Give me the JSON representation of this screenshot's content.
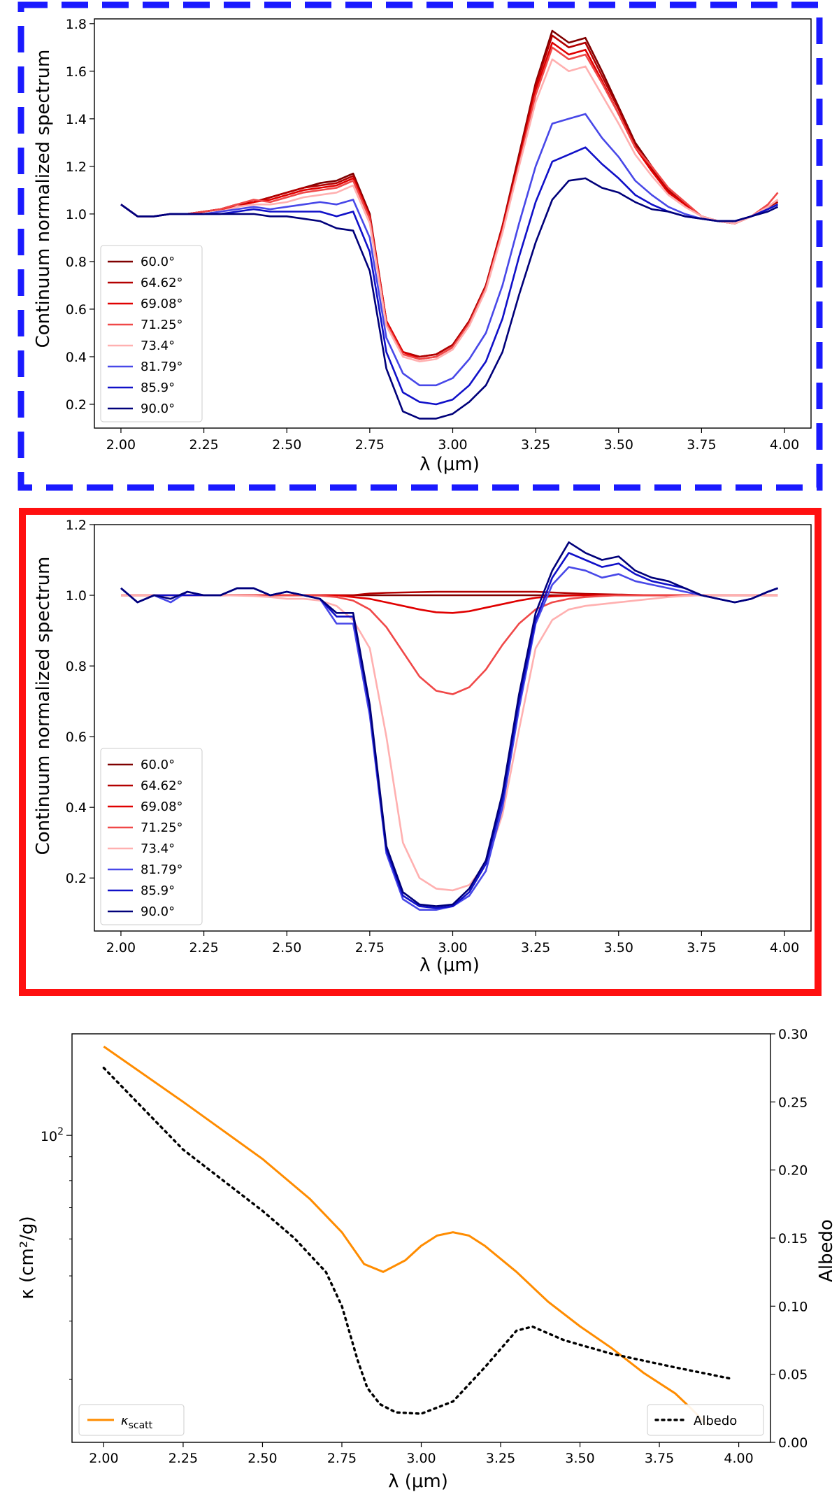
{
  "chart_data": [
    {
      "type": "line",
      "xlabel": "λ (μm)",
      "ylabel": "Continuum normalized spectrum",
      "xlim": [
        1.92,
        4.08
      ],
      "ylim": [
        0.1,
        1.82
      ],
      "x_ticks": [
        "2.00",
        "2.25",
        "2.50",
        "2.75",
        "3.00",
        "3.25",
        "3.50",
        "3.75",
        "4.00"
      ],
      "y_ticks": [
        "0.2",
        "0.4",
        "0.6",
        "0.8",
        "1.0",
        "1.2",
        "1.4",
        "1.6",
        "1.8"
      ],
      "legend_position": "lower-left",
      "border": "blue-dashed",
      "x": [
        2.0,
        2.05,
        2.1,
        2.15,
        2.2,
        2.25,
        2.3,
        2.35,
        2.4,
        2.45,
        2.5,
        2.55,
        2.6,
        2.65,
        2.7,
        2.75,
        2.8,
        2.85,
        2.9,
        2.95,
        3.0,
        3.05,
        3.1,
        3.15,
        3.2,
        3.25,
        3.3,
        3.35,
        3.4,
        3.45,
        3.5,
        3.55,
        3.6,
        3.65,
        3.7,
        3.75,
        3.8,
        3.85,
        3.9,
        3.95,
        3.98
      ],
      "series": [
        {
          "name": "60.0°",
          "color": "#7f0000",
          "values": [
            1.04,
            0.99,
            0.99,
            1.0,
            1.0,
            1.01,
            1.02,
            1.04,
            1.05,
            1.07,
            1.09,
            1.11,
            1.13,
            1.14,
            1.17,
            1.0,
            0.55,
            0.42,
            0.4,
            0.41,
            0.45,
            0.55,
            0.7,
            0.95,
            1.25,
            1.55,
            1.77,
            1.72,
            1.74,
            1.6,
            1.45,
            1.3,
            1.2,
            1.1,
            1.04,
            0.99,
            0.97,
            0.96,
            0.99,
            1.03,
            1.05
          ]
        },
        {
          "name": "64.62°",
          "color": "#b30000",
          "values": [
            1.04,
            0.99,
            0.99,
            1.0,
            1.0,
            1.01,
            1.02,
            1.04,
            1.05,
            1.07,
            1.09,
            1.11,
            1.12,
            1.13,
            1.16,
            0.99,
            0.55,
            0.42,
            0.4,
            0.41,
            0.45,
            0.55,
            0.7,
            0.95,
            1.24,
            1.54,
            1.75,
            1.7,
            1.72,
            1.58,
            1.44,
            1.29,
            1.19,
            1.1,
            1.04,
            0.99,
            0.97,
            0.96,
            0.99,
            1.03,
            1.05
          ]
        },
        {
          "name": "69.08°",
          "color": "#e00000",
          "values": [
            1.04,
            0.99,
            0.99,
            1.0,
            1.0,
            1.01,
            1.02,
            1.03,
            1.05,
            1.06,
            1.08,
            1.1,
            1.11,
            1.12,
            1.15,
            0.99,
            0.55,
            0.42,
            0.39,
            0.4,
            0.44,
            0.54,
            0.69,
            0.94,
            1.22,
            1.52,
            1.72,
            1.67,
            1.69,
            1.56,
            1.42,
            1.28,
            1.18,
            1.09,
            1.04,
            0.99,
            0.97,
            0.96,
            0.99,
            1.03,
            1.06
          ]
        },
        {
          "name": "71.25°",
          "color": "#f04848",
          "values": [
            1.04,
            0.99,
            0.99,
            1.0,
            1.0,
            1.01,
            1.02,
            1.04,
            1.06,
            1.05,
            1.07,
            1.09,
            1.1,
            1.11,
            1.14,
            0.98,
            0.54,
            0.41,
            0.39,
            0.4,
            0.44,
            0.54,
            0.69,
            0.93,
            1.21,
            1.5,
            1.7,
            1.65,
            1.67,
            1.55,
            1.42,
            1.28,
            1.2,
            1.11,
            1.05,
            0.99,
            0.97,
            0.96,
            0.99,
            1.04,
            1.09
          ]
        },
        {
          "name": "73.4°",
          "color": "#ffb0b0",
          "values": [
            1.04,
            0.99,
            0.99,
            1.0,
            1.0,
            1.0,
            1.01,
            1.03,
            1.04,
            1.04,
            1.05,
            1.07,
            1.08,
            1.09,
            1.12,
            0.96,
            0.53,
            0.4,
            0.38,
            0.39,
            0.43,
            0.53,
            0.68,
            0.92,
            1.2,
            1.47,
            1.65,
            1.6,
            1.62,
            1.5,
            1.38,
            1.25,
            1.16,
            1.08,
            1.03,
            0.99,
            0.97,
            0.96,
            0.99,
            1.03,
            1.06
          ]
        },
        {
          "name": "81.79°",
          "color": "#4848e8",
          "values": [
            1.04,
            0.99,
            0.99,
            1.0,
            1.0,
            1.0,
            1.01,
            1.02,
            1.03,
            1.02,
            1.03,
            1.04,
            1.05,
            1.04,
            1.06,
            0.9,
            0.48,
            0.33,
            0.28,
            0.28,
            0.31,
            0.39,
            0.5,
            0.7,
            0.96,
            1.2,
            1.38,
            1.4,
            1.42,
            1.32,
            1.24,
            1.14,
            1.08,
            1.03,
            1.0,
            0.98,
            0.97,
            0.97,
            0.99,
            1.02,
            1.04
          ]
        },
        {
          "name": "85.9°",
          "color": "#1010c8",
          "values": [
            1.04,
            0.99,
            0.99,
            1.0,
            1.0,
            1.0,
            1.0,
            1.01,
            1.02,
            1.01,
            1.01,
            1.01,
            1.01,
            0.99,
            1.01,
            0.84,
            0.42,
            0.25,
            0.21,
            0.2,
            0.22,
            0.28,
            0.38,
            0.56,
            0.82,
            1.05,
            1.22,
            1.25,
            1.28,
            1.21,
            1.15,
            1.08,
            1.04,
            1.01,
            0.99,
            0.98,
            0.97,
            0.97,
            0.99,
            1.02,
            1.04
          ]
        },
        {
          "name": "90.0°",
          "color": "#00007a",
          "values": [
            1.04,
            0.99,
            0.99,
            1.0,
            1.0,
            1.0,
            1.0,
            1.0,
            1.0,
            0.99,
            0.99,
            0.98,
            0.97,
            0.94,
            0.93,
            0.76,
            0.35,
            0.17,
            0.14,
            0.14,
            0.16,
            0.21,
            0.28,
            0.42,
            0.66,
            0.88,
            1.06,
            1.14,
            1.15,
            1.11,
            1.09,
            1.05,
            1.02,
            1.01,
            0.99,
            0.98,
            0.97,
            0.97,
            0.99,
            1.01,
            1.03
          ]
        }
      ]
    },
    {
      "type": "line",
      "xlabel": "λ (μm)",
      "ylabel": "Continuum normalized spectrum",
      "xlim": [
        1.92,
        4.08
      ],
      "ylim": [
        0.05,
        1.2
      ],
      "x_ticks": [
        "2.00",
        "2.25",
        "2.50",
        "2.75",
        "3.00",
        "3.25",
        "3.50",
        "3.75",
        "4.00"
      ],
      "y_ticks": [
        "0.2",
        "0.4",
        "0.6",
        "0.8",
        "1.0",
        "1.2"
      ],
      "legend_position": "lower-left",
      "border": "red-solid",
      "x": [
        2.0,
        2.05,
        2.1,
        2.15,
        2.2,
        2.25,
        2.3,
        2.35,
        2.4,
        2.45,
        2.5,
        2.55,
        2.6,
        2.65,
        2.7,
        2.75,
        2.8,
        2.85,
        2.9,
        2.95,
        3.0,
        3.05,
        3.1,
        3.15,
        3.2,
        3.25,
        3.3,
        3.35,
        3.4,
        3.45,
        3.5,
        3.55,
        3.6,
        3.65,
        3.7,
        3.75,
        3.8,
        3.85,
        3.9,
        3.95,
        3.98
      ],
      "series": [
        {
          "name": "60.0°",
          "color": "#7f0000",
          "values": [
            1.0,
            1.0,
            1.0,
            1.0,
            1.0,
            1.0,
            1.0,
            1.0,
            1.0,
            1.0,
            1.0,
            1.0,
            1.0,
            1.0,
            1.0,
            1.0,
            1.0,
            1.0,
            1.0,
            1.0,
            1.0,
            1.0,
            1.0,
            1.0,
            1.0,
            1.0,
            1.0,
            1.0,
            1.0,
            1.0,
            1.0,
            1.0,
            1.0,
            1.0,
            1.0,
            1.0,
            1.0,
            1.0,
            1.0,
            1.0,
            1.0
          ]
        },
        {
          "name": "64.62°",
          "color": "#b30000",
          "values": [
            1.0,
            1.0,
            1.0,
            1.0,
            1.0,
            1.0,
            1.0,
            1.0,
            1.0,
            1.0,
            1.0,
            1.0,
            1.0,
            1.0,
            1.0,
            1.005,
            1.007,
            1.008,
            1.009,
            1.01,
            1.01,
            1.01,
            1.01,
            1.01,
            1.01,
            1.01,
            1.008,
            1.006,
            1.004,
            1.003,
            1.002,
            1.001,
            1.0,
            1.0,
            1.0,
            1.0,
            1.0,
            1.0,
            1.0,
            1.0,
            1.0
          ]
        },
        {
          "name": "69.08°",
          "color": "#e00000",
          "values": [
            1.0,
            1.0,
            1.0,
            1.0,
            1.0,
            1.0,
            1.0,
            1.0,
            1.0,
            1.0,
            1.0,
            1.0,
            1.0,
            1.0,
            0.995,
            0.99,
            0.98,
            0.97,
            0.96,
            0.952,
            0.95,
            0.955,
            0.965,
            0.975,
            0.985,
            0.993,
            0.997,
            0.999,
            1.0,
            1.0,
            1.0,
            1.0,
            1.0,
            1.0,
            1.0,
            1.0,
            1.0,
            1.0,
            1.0,
            1.0,
            1.0
          ]
        },
        {
          "name": "71.25°",
          "color": "#f04848",
          "values": [
            1.0,
            1.0,
            1.0,
            1.0,
            1.0,
            1.0,
            1.0,
            1.0,
            1.0,
            1.0,
            1.0,
            1.0,
            0.999,
            0.995,
            0.985,
            0.96,
            0.91,
            0.84,
            0.77,
            0.73,
            0.72,
            0.74,
            0.79,
            0.86,
            0.92,
            0.96,
            0.98,
            0.99,
            0.995,
            0.998,
            1.0,
            1.0,
            1.0,
            1.0,
            1.0,
            1.0,
            1.0,
            1.0,
            1.0,
            1.0,
            1.0
          ]
        },
        {
          "name": "73.4°",
          "color": "#ffb0b0",
          "values": [
            1.0,
            1.0,
            1.0,
            1.0,
            1.0,
            1.0,
            1.0,
            0.999,
            0.998,
            0.995,
            0.99,
            0.99,
            0.985,
            0.97,
            0.93,
            0.85,
            0.6,
            0.3,
            0.2,
            0.17,
            0.165,
            0.18,
            0.24,
            0.38,
            0.62,
            0.85,
            0.93,
            0.96,
            0.97,
            0.975,
            0.98,
            0.985,
            0.99,
            0.995,
            0.998,
            1.0,
            1.0,
            1.0,
            1.0,
            1.0,
            1.0
          ]
        },
        {
          "name": "81.79°",
          "color": "#4848e8",
          "values": [
            1.02,
            0.98,
            1.0,
            0.98,
            1.01,
            1.0,
            1.0,
            1.02,
            1.02,
            1.0,
            1.01,
            1.0,
            0.99,
            0.92,
            0.92,
            0.66,
            0.27,
            0.14,
            0.11,
            0.11,
            0.12,
            0.15,
            0.22,
            0.4,
            0.68,
            0.92,
            1.03,
            1.08,
            1.07,
            1.05,
            1.06,
            1.04,
            1.03,
            1.02,
            1.01,
            1.0,
            0.99,
            0.98,
            0.99,
            1.01,
            1.02
          ]
        },
        {
          "name": "85.9°",
          "color": "#1010c8",
          "values": [
            1.02,
            0.98,
            1.0,
            1.0,
            1.0,
            1.0,
            1.0,
            1.02,
            1.02,
            1.0,
            1.01,
            1.0,
            0.99,
            0.94,
            0.94,
            0.68,
            0.28,
            0.15,
            0.12,
            0.115,
            0.12,
            0.16,
            0.24,
            0.42,
            0.7,
            0.93,
            1.05,
            1.12,
            1.1,
            1.08,
            1.09,
            1.06,
            1.04,
            1.03,
            1.02,
            1.0,
            0.99,
            0.98,
            0.99,
            1.01,
            1.02
          ]
        },
        {
          "name": "90.0°",
          "color": "#00007a",
          "values": [
            1.02,
            0.98,
            1.0,
            0.99,
            1.01,
            1.0,
            1.0,
            1.02,
            1.02,
            1.0,
            1.01,
            1.0,
            0.99,
            0.95,
            0.95,
            0.69,
            0.29,
            0.16,
            0.125,
            0.12,
            0.125,
            0.17,
            0.25,
            0.44,
            0.72,
            0.95,
            1.07,
            1.15,
            1.12,
            1.1,
            1.11,
            1.07,
            1.05,
            1.04,
            1.02,
            1.0,
            0.99,
            0.98,
            0.99,
            1.01,
            1.02
          ]
        }
      ]
    },
    {
      "type": "line",
      "xlabel": "λ (μm)",
      "ylabel_left": "κ (cm²/g)",
      "ylabel_right": "Albedo",
      "xlim": [
        1.9,
        4.1
      ],
      "x_ticks": [
        "2.00",
        "2.25",
        "2.50",
        "2.75",
        "3.00",
        "3.25",
        "3.50",
        "3.75",
        "4.00"
      ],
      "y_left_scale": "log",
      "y_left_lim": [
        22,
        165
      ],
      "y_left_ticks": [
        {
          "value": 100,
          "base": "10",
          "exp": "2"
        }
      ],
      "y_right_lim": [
        0.0,
        0.3
      ],
      "y_right_ticks": [
        "0.00",
        "0.05",
        "0.10",
        "0.15",
        "0.20",
        "0.25",
        "0.30"
      ],
      "legend_left": {
        "name": "κ",
        "subscript": "scatt",
        "position": "lower-left"
      },
      "legend_right": {
        "name": "Albedo",
        "position": "lower-right"
      },
      "series": [
        {
          "name": "κscatt",
          "axis": "left",
          "color": "#ff8c00",
          "style": "solid",
          "x": [
            2.0,
            2.25,
            2.5,
            2.65,
            2.75,
            2.82,
            2.88,
            2.95,
            3.0,
            3.05,
            3.1,
            3.15,
            3.2,
            3.3,
            3.4,
            3.5,
            3.6,
            3.7,
            3.8,
            3.85,
            3.9
          ],
          "values": [
            155,
            118,
            89,
            73,
            62,
            53,
            51,
            54,
            58,
            61,
            62,
            61,
            58,
            51,
            44,
            39,
            35,
            31,
            28,
            26,
            24
          ]
        },
        {
          "name": "Albedo",
          "axis": "right",
          "color": "#000000",
          "style": "dotted",
          "x": [
            2.0,
            2.25,
            2.5,
            2.6,
            2.7,
            2.75,
            2.8,
            2.83,
            2.87,
            2.92,
            3.0,
            3.1,
            3.2,
            3.3,
            3.35,
            3.45,
            3.6,
            3.8,
            3.97
          ],
          "values": [
            0.275,
            0.215,
            0.17,
            0.15,
            0.125,
            0.1,
            0.06,
            0.04,
            0.028,
            0.022,
            0.021,
            0.03,
            0.055,
            0.082,
            0.085,
            0.075,
            0.065,
            0.055,
            0.047
          ]
        }
      ]
    }
  ]
}
